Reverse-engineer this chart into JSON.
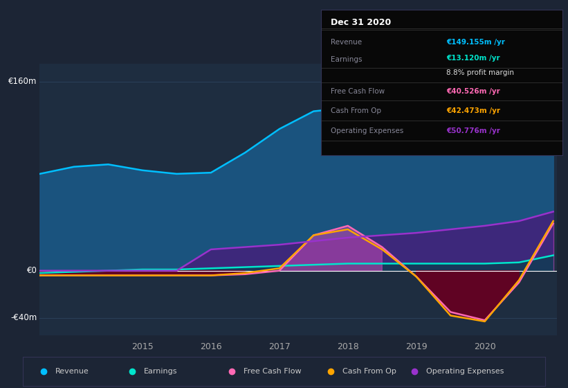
{
  "bg_color": "#1c2535",
  "plot_bg_color": "#1e2d40",
  "grid_color": "#2a3f58",
  "title_box_color": "#080808",
  "years": [
    2013.5,
    2014.0,
    2014.5,
    2015.0,
    2015.5,
    2016.0,
    2016.5,
    2017.0,
    2017.5,
    2018.0,
    2018.5,
    2019.0,
    2019.5,
    2020.0,
    2020.5,
    2021.0
  ],
  "revenue": [
    82,
    88,
    90,
    85,
    82,
    83,
    100,
    120,
    135,
    138,
    130,
    135,
    148,
    145,
    110,
    149
  ],
  "earnings": [
    -2,
    -1,
    0,
    1,
    1,
    2,
    3,
    4,
    5,
    6,
    6,
    6,
    6,
    6,
    7,
    13
  ],
  "free_cash_flow": [
    -4,
    -4,
    -4,
    -4,
    -4,
    -4,
    -3,
    0,
    30,
    38,
    20,
    -5,
    -35,
    -42,
    -10,
    40
  ],
  "cash_from_op": [
    -4,
    -4,
    -4,
    -4,
    -4,
    -4,
    -2,
    2,
    30,
    35,
    18,
    -5,
    -38,
    -43,
    -8,
    42
  ],
  "operating_expenses": [
    0,
    0,
    0,
    0,
    0,
    18,
    20,
    22,
    25,
    28,
    30,
    32,
    35,
    38,
    42,
    50
  ],
  "revenue_color": "#00bfff",
  "earnings_color": "#00e5cc",
  "fcf_color": "#ff69b4",
  "cashop_color": "#ffa500",
  "opex_color": "#9932cc",
  "revenue_fill": "#1a5a8a",
  "fcf_fill_pos": "#884488",
  "fcf_fill_neg": "#660022",
  "opex_fill": "#4a1a7a",
  "ylim": [
    -55,
    175
  ],
  "yticks": [
    -40,
    0,
    160
  ],
  "ytick_labels": [
    "-€40m",
    "€0",
    "€160m"
  ],
  "xtick_years": [
    2015,
    2016,
    2017,
    2018,
    2019,
    2020
  ],
  "info_title": "Dec 31 2020",
  "info_rows": [
    {
      "label": "Revenue",
      "value": "€149.155m /yr",
      "value_color": "#00bfff",
      "sublabel": "",
      "subcolor": ""
    },
    {
      "label": "Earnings",
      "value": "€13.120m /yr",
      "value_color": "#00e5cc",
      "sublabel": "8.8% profit margin",
      "subcolor": "#dddddd"
    },
    {
      "label": "Free Cash Flow",
      "value": "€40.526m /yr",
      "value_color": "#ff69b4",
      "sublabel": "",
      "subcolor": ""
    },
    {
      "label": "Cash From Op",
      "value": "€42.473m /yr",
      "value_color": "#ffa500",
      "sublabel": "",
      "subcolor": ""
    },
    {
      "label": "Operating Expenses",
      "value": "€50.776m /yr",
      "value_color": "#9932cc",
      "sublabel": "",
      "subcolor": ""
    }
  ],
  "legend": [
    {
      "label": "Revenue",
      "color": "#00bfff"
    },
    {
      "label": "Earnings",
      "color": "#00e5cc"
    },
    {
      "label": "Free Cash Flow",
      "color": "#ff69b4"
    },
    {
      "label": "Cash From Op",
      "color": "#ffa500"
    },
    {
      "label": "Operating Expenses",
      "color": "#9932cc"
    }
  ]
}
